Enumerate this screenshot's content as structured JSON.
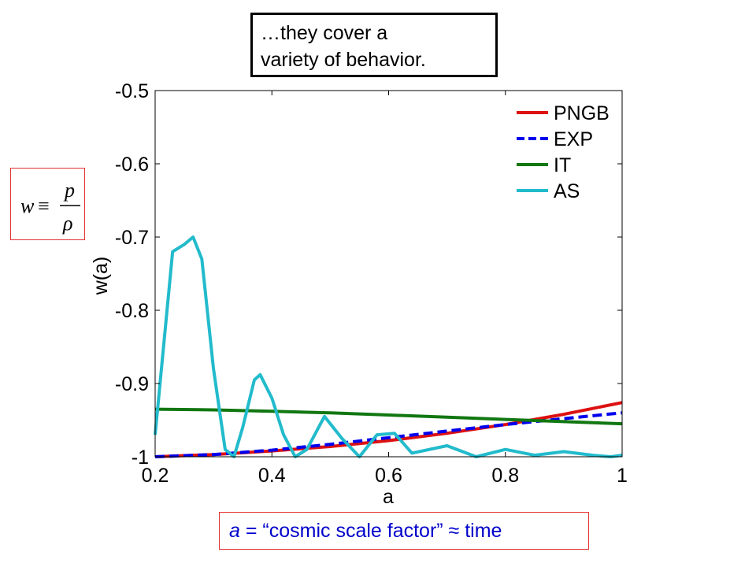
{
  "callout": {
    "line1": "…they cover a",
    "line2": "variety of behavior."
  },
  "formula": {
    "lhs": "w",
    "op": "≡",
    "num": "p",
    "den": "ρ"
  },
  "caption": {
    "var": "a",
    "rest": " = “cosmic scale factor” ≈ time"
  },
  "chart_data": {
    "type": "line",
    "title": "",
    "xlabel": "a",
    "ylabel": "w(a)",
    "xlim": [
      0.2,
      1.0
    ],
    "ylim": [
      -1.0,
      -0.5
    ],
    "xticks": [
      0.2,
      0.4,
      0.6,
      0.8,
      1.0
    ],
    "xtick_labels": [
      "0.2",
      "0.4",
      "0.6",
      "0.8",
      "1"
    ],
    "yticks": [
      -0.5,
      -0.6,
      -0.7,
      -0.8,
      -0.9,
      -1.0
    ],
    "ytick_labels": [
      "-0.5",
      "-0.6",
      "-0.7",
      "-0.8",
      "-0.9",
      "-1"
    ],
    "grid": false,
    "legend_position": "top-right",
    "series": [
      {
        "name": "PNGB",
        "color": "#dd1111",
        "dash": "solid",
        "x": [
          0.2,
          0.3,
          0.4,
          0.5,
          0.6,
          0.7,
          0.8,
          0.9,
          1.0
        ],
        "y": [
          -1.0,
          -0.997,
          -0.992,
          -0.986,
          -0.978,
          -0.968,
          -0.956,
          -0.942,
          -0.926
        ]
      },
      {
        "name": "EXP",
        "color": "#0000ee",
        "dash": "dashed",
        "x": [
          0.2,
          0.3,
          0.4,
          0.5,
          0.6,
          0.7,
          0.8,
          0.9,
          1.0
        ],
        "y": [
          -1.0,
          -0.997,
          -0.991,
          -0.983,
          -0.974,
          -0.965,
          -0.956,
          -0.948,
          -0.94
        ]
      },
      {
        "name": "IT",
        "color": "#117711",
        "dash": "solid",
        "x": [
          0.2,
          0.3,
          0.4,
          0.5,
          0.6,
          0.7,
          0.8,
          0.9,
          1.0
        ],
        "y": [
          -0.935,
          -0.936,
          -0.938,
          -0.94,
          -0.943,
          -0.946,
          -0.949,
          -0.952,
          -0.955
        ]
      },
      {
        "name": "AS",
        "color": "#22bbcc",
        "dash": "solid",
        "x": [
          0.2,
          0.23,
          0.25,
          0.265,
          0.28,
          0.3,
          0.32,
          0.335,
          0.35,
          0.37,
          0.38,
          0.4,
          0.42,
          0.44,
          0.46,
          0.49,
          0.52,
          0.55,
          0.58,
          0.61,
          0.64,
          0.7,
          0.75,
          0.8,
          0.85,
          0.9,
          0.95,
          0.98,
          1.0
        ],
        "y": [
          -0.97,
          -0.72,
          -0.71,
          -0.7,
          -0.73,
          -0.88,
          -0.99,
          -1.0,
          -0.96,
          -0.895,
          -0.888,
          -0.92,
          -0.97,
          -1.0,
          -0.99,
          -0.945,
          -0.975,
          -1.0,
          -0.97,
          -0.968,
          -0.995,
          -0.985,
          -1.0,
          -0.99,
          -0.998,
          -0.993,
          -0.998,
          -1.0,
          -0.998
        ]
      }
    ]
  }
}
